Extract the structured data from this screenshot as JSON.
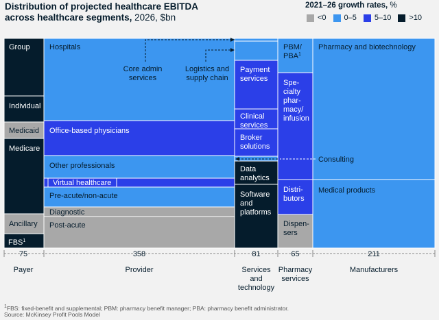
{
  "title_bold": "Distribution of projected healthcare EBITDA",
  "title_bold2": "across healthcare segments,",
  "title_rest": " 2026, $bn",
  "legend": {
    "heading_bold": "2021–26 growth rates,",
    "heading_rest": " %",
    "items": [
      {
        "label": "<0",
        "color": "#a8a8a8"
      },
      {
        "label": "0–5",
        "color": "#3c96f0"
      },
      {
        "label": "5–10",
        "color": "#2b3fe8"
      },
      {
        "label": ">10",
        "color": "#051c2c"
      }
    ]
  },
  "chart_data": {
    "type": "marimekko",
    "unit": "$bn",
    "year": 2026,
    "columns": [
      {
        "name": "Payer",
        "total": "75",
        "segments": [
          {
            "label": "Group",
            "growth": ">10"
          },
          {
            "label": "Individual",
            "growth": ">10"
          },
          {
            "label": "Medicaid",
            "growth": "<0"
          },
          {
            "label": "Medicare",
            "growth": ">10"
          },
          {
            "label": "Ancillary",
            "growth": "<0"
          },
          {
            "label": "FBS",
            "sup": "1",
            "growth": ">10"
          }
        ]
      },
      {
        "name": "Provider",
        "total": "358",
        "segments": [
          {
            "label": "Hospitals",
            "growth": "0–5"
          },
          {
            "label": "Office-based physicians",
            "growth": "5–10"
          },
          {
            "label": "Other professionals",
            "growth": "0–5"
          },
          {
            "label": "Virtual healthcare",
            "growth": "5–10"
          },
          {
            "label": "Pre-acute/non-acute",
            "growth": "0–5"
          },
          {
            "label": "Diagnostic",
            "growth": "<0"
          },
          {
            "label": "Post-acute",
            "growth": "<0"
          }
        ]
      },
      {
        "name": "Services and technology",
        "total": "81",
        "segments": [
          {
            "label": "Core admin services",
            "growth": "0–5"
          },
          {
            "label": "Logistics and supply chain",
            "growth": "0–5"
          },
          {
            "label": "Payment services",
            "growth": "5–10"
          },
          {
            "label": "Clinical services",
            "growth": "5–10"
          },
          {
            "label": "Broker solutions",
            "growth": "5–10"
          },
          {
            "label": "Consulting",
            "growth": "0–5"
          },
          {
            "label": "Data analytics",
            "growth": ">10"
          },
          {
            "label": "Software and platforms",
            "growth": ">10"
          }
        ]
      },
      {
        "name": "Pharmacy services",
        "total": "65",
        "segments": [
          {
            "label": "PBM/PBA",
            "sup": "1",
            "growth": "0–5"
          },
          {
            "label": "Specialty pharmacy/infusion",
            "growth": "5–10"
          },
          {
            "label": "Distributors",
            "growth": "5–10"
          },
          {
            "label": "Dispensers",
            "growth": "<0"
          }
        ]
      },
      {
        "name": "Manufacturers",
        "total": "211",
        "segments": [
          {
            "label": "Pharmacy and biotechnology",
            "growth": "0–5"
          },
          {
            "label": "Medical products",
            "growth": "0–5"
          }
        ]
      }
    ]
  },
  "footnote": "FBS: fixed-benefit and supplemental; PBM: pharmacy benefit manager; PBA: pharmacy benefit administrator.",
  "footnote_mark": "1",
  "source": "Source: McKinsey Profit Pools Model"
}
